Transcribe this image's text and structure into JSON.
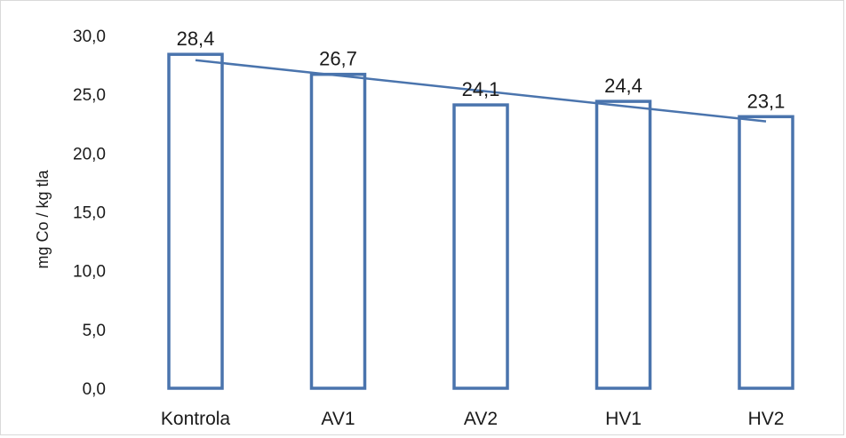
{
  "chart_data": {
    "type": "bar",
    "title": "",
    "xlabel": "",
    "ylabel": "mg Co / kg tla",
    "categories": [
      "Kontrola",
      "AV1",
      "AV2",
      "HV1",
      "HV2"
    ],
    "values": [
      28.4,
      26.7,
      24.1,
      24.4,
      23.1
    ],
    "data_labels": [
      "28,4",
      "26,7",
      "24,1",
      "24,4",
      "23,1"
    ],
    "y_ticks": [
      0,
      5,
      10,
      15,
      20,
      25,
      30
    ],
    "y_tick_labels": [
      "0,0",
      "5,0",
      "10,0",
      "15,0",
      "20,0",
      "25,0",
      "30,0"
    ],
    "ylim": [
      0,
      30
    ],
    "grid": false,
    "bar_style": "outline",
    "trendline": {
      "type": "linear",
      "start_value": 27.9,
      "end_value": 22.7
    },
    "colors": {
      "bar_stroke": "#4a74ad",
      "trendline": "#4a74ad",
      "text": "#1a1a1a"
    }
  }
}
